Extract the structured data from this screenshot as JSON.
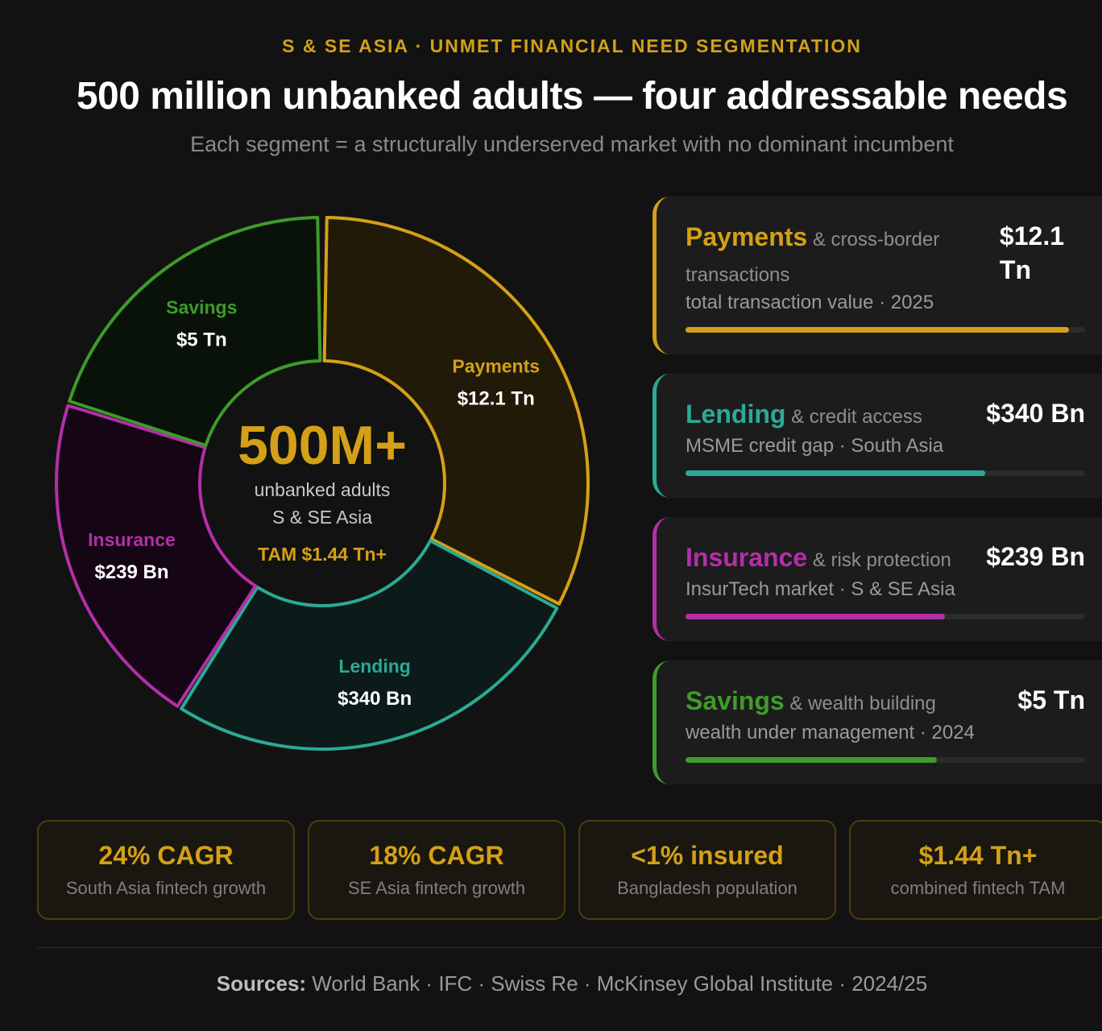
{
  "header": {
    "eyebrow": "S & SE ASIA · UNMET FINANCIAL NEED SEGMENTATION",
    "title": "500 million unbanked adults — four addressable needs",
    "subtitle": "Each segment = a structurally underserved market with no dominant incumbent"
  },
  "chart_data": {
    "type": "pie",
    "center": {
      "big": "500M+",
      "line1": "unbanked adults",
      "line2": "S & SE Asia",
      "tam": "TAM $1.44 Tn+"
    },
    "segments": [
      {
        "label": "Payments",
        "value_label": "$12.1 Tn",
        "start_deg": 1,
        "end_deg": 117,
        "color": "#D4A017",
        "fill": "#211a08"
      },
      {
        "label": "Lending",
        "value_label": "$340 Bn",
        "start_deg": 118,
        "end_deg": 212,
        "color": "#2BAA96",
        "fill": "#0c1a1a"
      },
      {
        "label": "Insurance",
        "value_label": "$239 Bn",
        "start_deg": 213,
        "end_deg": 287,
        "color": "#B32FA8",
        "fill": "#150515"
      },
      {
        "label": "Savings",
        "value_label": "$5 Tn",
        "start_deg": 288,
        "end_deg": 359,
        "color": "#3E9B2A",
        "fill": "#081208"
      }
    ]
  },
  "cards": [
    {
      "name": "Payments",
      "desc": "& cross-border transactions",
      "metric": "total transaction value · 2025",
      "value_line1": "$12.1",
      "value_line2": "Tn",
      "fill_pct": 96,
      "color": "#D4A017"
    },
    {
      "name": "Lending",
      "desc": "& credit access",
      "metric": "MSME credit gap · South Asia",
      "value_line1": "$340 Bn",
      "value_line2": "",
      "fill_pct": 75,
      "color": "#2BAA96"
    },
    {
      "name": "Insurance",
      "desc": "& risk protection",
      "metric": "InsurTech market · S & SE Asia",
      "value_line1": "$239 Bn",
      "value_line2": "",
      "fill_pct": 65,
      "color": "#B32FA8"
    },
    {
      "name": "Savings",
      "desc": "& wealth building",
      "metric": "wealth under management · 2024",
      "value_line1": "$5 Tn",
      "value_line2": "",
      "fill_pct": 63,
      "color": "#3E9B2A"
    }
  ],
  "stats": [
    {
      "value": "24% CAGR",
      "label": "South Asia fintech growth"
    },
    {
      "value": "18% CAGR",
      "label": "SE Asia fintech growth"
    },
    {
      "value": "<1% insured",
      "label": "Bangladesh population"
    },
    {
      "value": "$1.44 Tn+",
      "label": "combined fintech TAM"
    }
  ],
  "footer": {
    "sources_label": "Sources:",
    "sources_text": "World Bank · IFC · Swiss Re · McKinsey Global Institute · 2024/25"
  }
}
